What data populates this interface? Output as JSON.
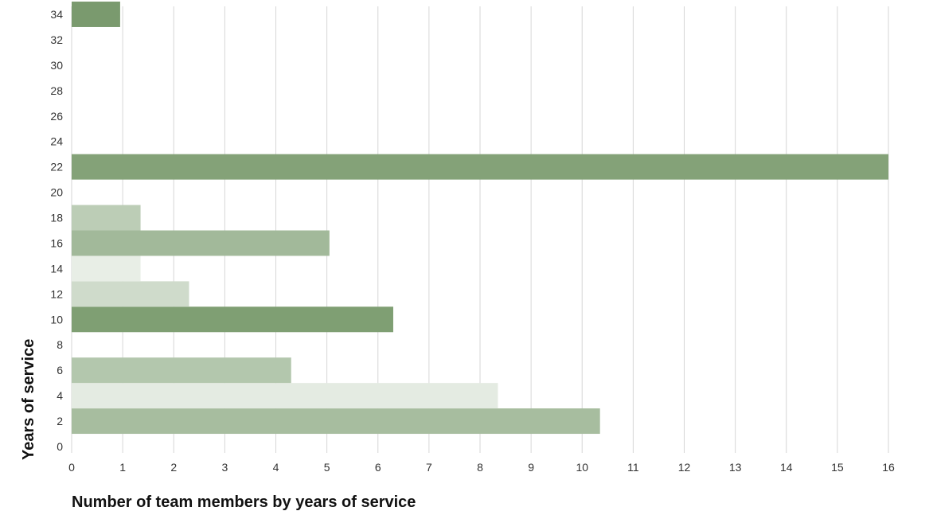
{
  "chart_data": {
    "type": "bar",
    "orientation": "horizontal",
    "title": "",
    "xlabel": "Number of team members by years of service",
    "ylabel": "Years of service",
    "xlim": [
      0,
      16
    ],
    "ylim": [
      0,
      34
    ],
    "x_ticks": [
      0,
      1,
      2,
      3,
      4,
      5,
      6,
      7,
      8,
      9,
      10,
      11,
      12,
      13,
      14,
      15,
      16
    ],
    "y_ticks": [
      0,
      2,
      4,
      6,
      8,
      10,
      12,
      14,
      16,
      18,
      20,
      22,
      24,
      26,
      28,
      30,
      32,
      34
    ],
    "grid": "vertical",
    "legend": "none",
    "bars": [
      {
        "y": 2,
        "value": 10.35,
        "color": "#a7bd9f"
      },
      {
        "y": 4,
        "value": 8.35,
        "color": "#e4ebe2"
      },
      {
        "y": 6,
        "value": 4.3,
        "color": "#b3c7ad"
      },
      {
        "y": 10,
        "value": 6.3,
        "color": "#7f9f73"
      },
      {
        "y": 12,
        "value": 2.3,
        "color": "#cfdbcb"
      },
      {
        "y": 14,
        "value": 1.35,
        "color": "#e8eee6"
      },
      {
        "y": 16,
        "value": 5.05,
        "color": "#a2b99a"
      },
      {
        "y": 18,
        "value": 1.35,
        "color": "#bccdb6"
      },
      {
        "y": 22,
        "value": 16,
        "color": "#84a278"
      },
      {
        "y": 34,
        "value": 0.95,
        "color": "#7a9a6e"
      }
    ]
  }
}
